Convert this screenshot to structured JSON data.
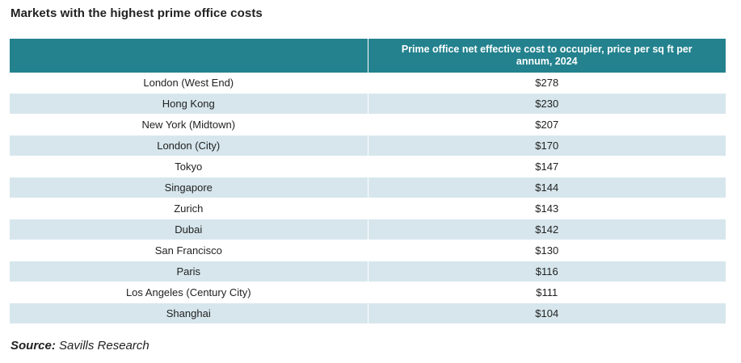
{
  "title": "Markets with the highest prime office costs",
  "header": {
    "col1": "",
    "col2": "Prime office net effective cost to occupier, price per sq ft per annum, 2024"
  },
  "rows": [
    {
      "market": "London (West End)",
      "cost": "$278"
    },
    {
      "market": "Hong Kong",
      "cost": "$230"
    },
    {
      "market": "New York (Midtown)",
      "cost": "$207"
    },
    {
      "market": "London (City)",
      "cost": "$170"
    },
    {
      "market": "Tokyo",
      "cost": "$147"
    },
    {
      "market": "Singapore",
      "cost": "$144"
    },
    {
      "market": "Zurich",
      "cost": "$143"
    },
    {
      "market": "Dubai",
      "cost": "$142"
    },
    {
      "market": "San Francisco",
      "cost": "$130"
    },
    {
      "market": "Paris",
      "cost": "$116"
    },
    {
      "market": "Los Angeles (Century City)",
      "cost": "$111"
    },
    {
      "market": "Shanghai",
      "cost": "$104"
    }
  ],
  "source": {
    "label": "Source:",
    "text": "Savills Research"
  },
  "colors": {
    "header_bg": "#23828e",
    "stripe_bg": "#d6e6ec"
  },
  "chart_data": {
    "type": "table",
    "title": "Markets with the highest prime office costs",
    "columns": [
      "",
      "Prime office net effective cost to occupier, price per sq ft per annum, 2024"
    ],
    "categories": [
      "London (West End)",
      "Hong Kong",
      "New York (Midtown)",
      "London (City)",
      "Tokyo",
      "Singapore",
      "Zurich",
      "Dubai",
      "San Francisco",
      "Paris",
      "Los Angeles (Century City)",
      "Shanghai"
    ],
    "values": [
      278,
      230,
      207,
      170,
      147,
      144,
      143,
      142,
      130,
      116,
      111,
      104
    ],
    "source": "Savills Research"
  }
}
